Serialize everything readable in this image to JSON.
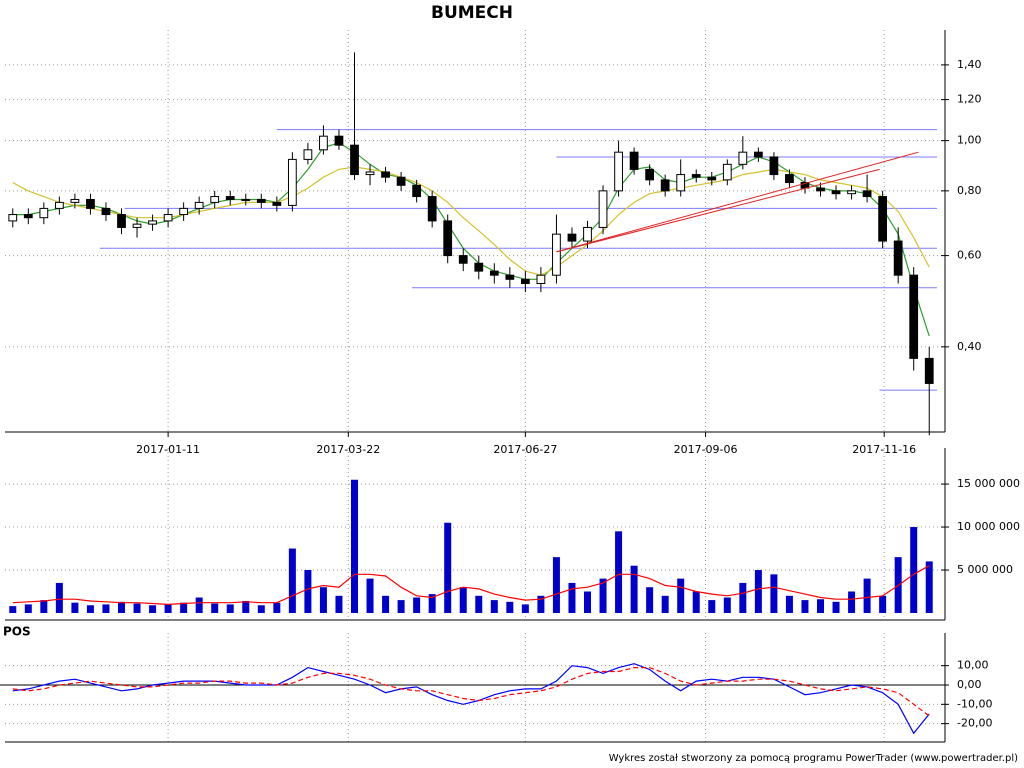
{
  "chart_data": [
    {
      "type": "candlestick",
      "title": "BUMECH",
      "log_scale": true,
      "grid": true,
      "color": "#000000",
      "xlim": [
        -0.5,
        59.5
      ],
      "xticks": [
        {
          "value": 10,
          "label": "2017-01-11"
        },
        {
          "value": 21.6,
          "label": "2017-03-22"
        },
        {
          "value": 33,
          "label": "2017-06-27"
        },
        {
          "value": 44.6,
          "label": "2017-09-06"
        },
        {
          "value": 56.1,
          "label": "2017-11-16"
        }
      ],
      "ylim": [
        0.274,
        1.55
      ],
      "yticks": [
        {
          "value": 0.4,
          "label": "0,40"
        },
        {
          "value": 0.6,
          "label": "0,60"
        },
        {
          "value": 0.8,
          "label": "0,80"
        },
        {
          "value": 1.0,
          "label": "1,00"
        },
        {
          "value": 1.2,
          "label": "1,20"
        },
        {
          "value": 1.4,
          "label": "1,40"
        }
      ],
      "open": [
        0.7,
        0.72,
        0.71,
        0.74,
        0.76,
        0.77,
        0.74,
        0.72,
        0.68,
        0.69,
        0.7,
        0.72,
        0.74,
        0.76,
        0.78,
        0.77,
        0.77,
        0.76,
        0.75,
        0.92,
        0.96,
        1.02,
        0.98,
        0.86,
        0.87,
        0.85,
        0.82,
        0.78,
        0.7,
        0.6,
        0.58,
        0.56,
        0.55,
        0.54,
        0.53,
        0.55,
        0.66,
        0.64,
        0.68,
        0.8,
        0.95,
        0.88,
        0.84,
        0.8,
        0.86,
        0.85,
        0.84,
        0.9,
        0.95,
        0.93,
        0.86,
        0.83,
        0.81,
        0.8,
        0.79,
        0.8,
        0.78,
        0.64,
        0.55,
        0.38
      ],
      "high": [
        0.74,
        0.74,
        0.76,
        0.78,
        0.79,
        0.79,
        0.76,
        0.74,
        0.71,
        0.72,
        0.74,
        0.76,
        0.78,
        0.8,
        0.8,
        0.79,
        0.79,
        0.78,
        0.95,
        0.99,
        1.07,
        1.05,
        1.48,
        0.9,
        0.89,
        0.87,
        0.84,
        0.8,
        0.72,
        0.62,
        0.6,
        0.58,
        0.57,
        0.56,
        0.57,
        0.72,
        0.68,
        0.7,
        0.82,
        1.0,
        0.97,
        0.9,
        0.86,
        0.92,
        0.88,
        0.87,
        0.92,
        1.02,
        0.97,
        0.95,
        0.88,
        0.85,
        0.83,
        0.82,
        0.82,
        0.86,
        0.8,
        0.68,
        0.57,
        0.4
      ],
      "low": [
        0.68,
        0.69,
        0.69,
        0.72,
        0.74,
        0.72,
        0.7,
        0.66,
        0.65,
        0.67,
        0.68,
        0.7,
        0.72,
        0.74,
        0.75,
        0.75,
        0.74,
        0.73,
        0.73,
        0.9,
        0.94,
        0.96,
        0.84,
        0.82,
        0.83,
        0.8,
        0.76,
        0.68,
        0.58,
        0.56,
        0.54,
        0.53,
        0.52,
        0.51,
        0.51,
        0.53,
        0.62,
        0.62,
        0.66,
        0.78,
        0.86,
        0.82,
        0.78,
        0.78,
        0.83,
        0.82,
        0.82,
        0.88,
        0.91,
        0.84,
        0.81,
        0.79,
        0.78,
        0.77,
        0.77,
        0.76,
        0.62,
        0.53,
        0.36,
        0.27
      ],
      "close": [
        0.72,
        0.71,
        0.74,
        0.76,
        0.77,
        0.74,
        0.72,
        0.68,
        0.69,
        0.7,
        0.72,
        0.74,
        0.76,
        0.78,
        0.77,
        0.77,
        0.76,
        0.75,
        0.92,
        0.96,
        1.02,
        0.98,
        0.86,
        0.87,
        0.85,
        0.82,
        0.78,
        0.7,
        0.6,
        0.58,
        0.56,
        0.55,
        0.54,
        0.53,
        0.55,
        0.66,
        0.64,
        0.68,
        0.8,
        0.95,
        0.88,
        0.84,
        0.8,
        0.86,
        0.85,
        0.84,
        0.9,
        0.95,
        0.93,
        0.86,
        0.83,
        0.81,
        0.8,
        0.79,
        0.8,
        0.78,
        0.64,
        0.55,
        0.38,
        0.34
      ],
      "overlays": [
        {
          "color": "#2e9e2e",
          "values": [
            0.72,
            0.72,
            0.73,
            0.74,
            0.75,
            0.75,
            0.74,
            0.72,
            0.7,
            0.69,
            0.7,
            0.72,
            0.74,
            0.76,
            0.77,
            0.77,
            0.77,
            0.76,
            0.81,
            0.88,
            0.97,
            0.99,
            0.95,
            0.9,
            0.86,
            0.85,
            0.82,
            0.77,
            0.69,
            0.62,
            0.58,
            0.56,
            0.55,
            0.54,
            0.54,
            0.58,
            0.62,
            0.66,
            0.71,
            0.81,
            0.88,
            0.89,
            0.84,
            0.83,
            0.85,
            0.85,
            0.87,
            0.9,
            0.93,
            0.91,
            0.87,
            0.83,
            0.81,
            0.8,
            0.8,
            0.79,
            0.74,
            0.66,
            0.52,
            0.42
          ]
        },
        {
          "color": "#d4c22a",
          "values": [
            0.83,
            0.8,
            0.78,
            0.76,
            0.75,
            0.74,
            0.73,
            0.72,
            0.71,
            0.71,
            0.71,
            0.72,
            0.73,
            0.74,
            0.75,
            0.76,
            0.76,
            0.76,
            0.78,
            0.81,
            0.85,
            0.88,
            0.89,
            0.88,
            0.87,
            0.85,
            0.83,
            0.8,
            0.76,
            0.71,
            0.67,
            0.63,
            0.59,
            0.56,
            0.55,
            0.57,
            0.6,
            0.63,
            0.67,
            0.72,
            0.76,
            0.79,
            0.8,
            0.81,
            0.82,
            0.83,
            0.84,
            0.86,
            0.87,
            0.88,
            0.87,
            0.86,
            0.84,
            0.83,
            0.82,
            0.81,
            0.78,
            0.73,
            0.65,
            0.57
          ]
        }
      ],
      "hlines": {
        "color": "#7b7bff",
        "levels": [
          {
            "value": 1.05,
            "x": [
              17,
              59.5
            ]
          },
          {
            "value": 0.93,
            "x": [
              35,
              59.5
            ]
          },
          {
            "value": 0.74,
            "x": [
              7.2,
              59.5
            ]
          },
          {
            "value": 0.62,
            "x": [
              5.6,
              59.5
            ]
          },
          {
            "value": 0.52,
            "x": [
              25.7,
              59.5
            ]
          },
          {
            "value": 0.33,
            "x": [
              55.8,
              59.5
            ]
          }
        ]
      },
      "trendlines": {
        "color": "#e02020",
        "lines": [
          {
            "x": [
              35,
              58.3
            ],
            "y": [
              0.61,
              0.95
            ]
          },
          {
            "x": [
              35,
              55.8
            ],
            "y": [
              0.61,
              0.88
            ]
          }
        ]
      }
    },
    {
      "type": "bar",
      "grid": true,
      "color": "#0000cc",
      "xlim": [
        -0.5,
        59.5
      ],
      "ylim": [
        0,
        17800000
      ],
      "yticks": [
        {
          "value": 5000000,
          "label": "5 000 000"
        },
        {
          "value": 10000000,
          "label": "10 000 000"
        },
        {
          "value": 15000000,
          "label": "15 000 000"
        }
      ],
      "values": [
        800000,
        1000000,
        1500000,
        3500000,
        1200000,
        900000,
        1000000,
        1300000,
        1100000,
        900000,
        1000000,
        1200000,
        1800000,
        1100000,
        1000000,
        1400000,
        900000,
        1200000,
        7500000,
        5000000,
        3000000,
        2000000,
        15500000,
        4000000,
        2000000,
        1500000,
        1800000,
        2200000,
        10500000,
        3000000,
        2000000,
        1500000,
        1300000,
        1000000,
        2000000,
        6500000,
        3500000,
        2500000,
        4000000,
        9500000,
        5500000,
        3000000,
        2000000,
        4000000,
        2500000,
        1500000,
        1800000,
        3500000,
        5000000,
        4500000,
        2000000,
        1500000,
        1600000,
        1300000,
        2500000,
        4000000,
        2000000,
        6500000,
        10000000,
        6000000
      ],
      "overlays": [
        {
          "color": "#ff0000",
          "values": [
            1200000,
            1300000,
            1400000,
            1600000,
            1600000,
            1400000,
            1300000,
            1200000,
            1200000,
            1100000,
            1000000,
            1100000,
            1200000,
            1200000,
            1200000,
            1300000,
            1200000,
            1200000,
            2000000,
            2800000,
            3200000,
            3000000,
            4500000,
            4500000,
            4300000,
            3000000,
            2000000,
            1800000,
            2500000,
            3000000,
            2800000,
            2200000,
            1800000,
            1500000,
            1600000,
            2200000,
            2800000,
            3000000,
            3500000,
            4500000,
            4500000,
            4000000,
            3200000,
            3000000,
            2500000,
            2200000,
            2000000,
            2300000,
            2800000,
            3000000,
            2600000,
            2200000,
            1800000,
            1600000,
            1600000,
            1800000,
            2000000,
            3200000,
            4500000,
            5500000
          ]
        }
      ]
    },
    {
      "type": "line",
      "title": "POS",
      "grid": true,
      "zero_line": true,
      "xlim": [
        -0.5,
        59.5
      ],
      "ylim": [
        -29.5,
        20.7
      ],
      "yticks": [
        {
          "value": 10,
          "label": "10,00"
        },
        {
          "value": 0,
          "label": "0,00"
        },
        {
          "value": -10,
          "label": "-10,00"
        },
        {
          "value": -20,
          "label": "-20,00"
        }
      ],
      "series": [
        {
          "color": "#0000ff",
          "values": [
            -3,
            -2,
            0,
            2,
            3,
            1,
            -1,
            -3,
            -2,
            0,
            1,
            2,
            2,
            2,
            1,
            0,
            0,
            0,
            4,
            9,
            7,
            5,
            3,
            0,
            -4,
            -2,
            -1,
            -5,
            -8,
            -10,
            -8,
            -5,
            -3,
            -2,
            -2,
            2,
            10,
            9,
            6,
            9,
            11,
            8,
            2,
            -3,
            2,
            3,
            2,
            4,
            4,
            3,
            -1,
            -5,
            -4,
            -2,
            0,
            -1,
            -4,
            -10,
            -25,
            -15
          ]
        },
        {
          "color": "#ff0000",
          "dashed": true,
          "values": [
            -2,
            -3,
            -2,
            0,
            1,
            2,
            1,
            0,
            -1,
            -1,
            0,
            1,
            1,
            2,
            2,
            1,
            1,
            0,
            1,
            4,
            6,
            6,
            5,
            3,
            0,
            -2,
            -3,
            -3,
            -5,
            -7,
            -8,
            -7,
            -5,
            -4,
            -3,
            -1,
            3,
            6,
            7,
            7,
            9,
            9,
            6,
            2,
            0,
            1,
            2,
            2,
            3,
            3,
            2,
            0,
            -2,
            -3,
            -2,
            -1,
            -2,
            -4,
            -10,
            -16
          ]
        }
      ]
    }
  ],
  "footer": "Wykres został stworzony za pomocą programu PowerTrader (www.powertrader.pl)"
}
